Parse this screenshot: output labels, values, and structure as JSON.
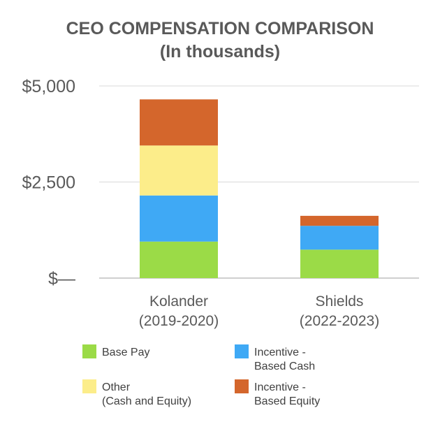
{
  "chart_data": {
    "type": "bar",
    "stacked": true,
    "title": "CEO COMPENSATION COMPARISON",
    "subtitle": "(In thousands)",
    "categories": [
      {
        "name": "Kolander",
        "period": "(2019-2020)"
      },
      {
        "name": "Shields",
        "period": "(2022-2023)"
      }
    ],
    "series": [
      {
        "name": "Base Pay",
        "legend_lines": [
          "Base Pay"
        ],
        "color": "#9bdb47",
        "values": [
          950,
          740
        ]
      },
      {
        "name": "Incentive - Based Cash",
        "legend_lines": [
          "Incentive -",
          "Based Cash"
        ],
        "color": "#3fa9f5",
        "values": [
          1200,
          620
        ]
      },
      {
        "name": "Other (Cash and Equity)",
        "legend_lines": [
          "Other",
          "(Cash and Equity)"
        ],
        "color": "#fced8a",
        "values": [
          1300,
          0
        ]
      },
      {
        "name": "Incentive - Based Equity",
        "legend_lines": [
          "Incentive -",
          "Based Equity"
        ],
        "color": "#d4662c",
        "values": [
          1200,
          260
        ]
      }
    ],
    "legend_order": [
      0,
      1,
      2,
      3
    ],
    "yticks": [
      {
        "value": 0,
        "label": "$—"
      },
      {
        "value": 2500,
        "label": "$2,500"
      },
      {
        "value": 5000,
        "label": "$5,000"
      }
    ],
    "ylim": [
      0,
      5000
    ],
    "xlabel": "",
    "ylabel": "",
    "grid": true,
    "legend_position": "bottom"
  }
}
